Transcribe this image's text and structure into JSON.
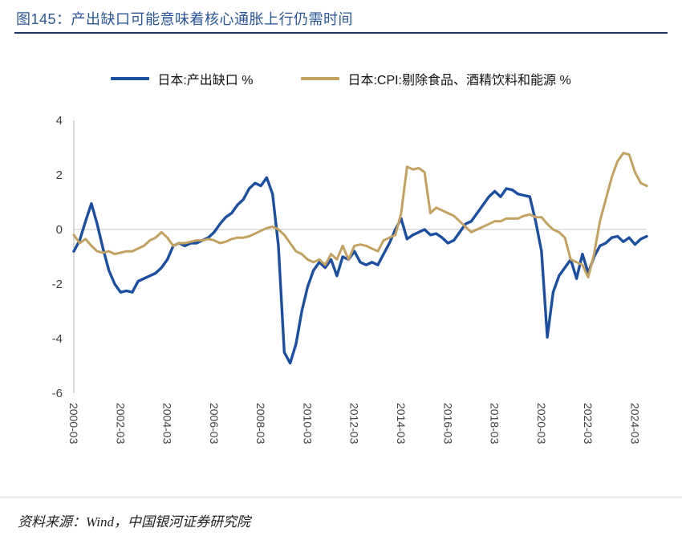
{
  "header": {
    "title": "图145：产出缺口可能意味着核心通胀上行仍需时间"
  },
  "legend": [
    {
      "label": "日本:产出缺口 %",
      "color": "#1C4FA1"
    },
    {
      "label": "日本:CPI:剔除食品、酒精饮料和能源 %",
      "color": "#C3A161"
    }
  ],
  "footer": {
    "source": "资料来源：Wind，中国银河证券研究院"
  },
  "colors": {
    "title": "#2B579A",
    "title_rule": "#1F3864",
    "axis": "#BFBFBF",
    "zero_line": "#D0D0D0",
    "tick_text": "#404040"
  },
  "chart_data": {
    "type": "line",
    "title": "",
    "xlabel": "",
    "ylabel": "",
    "x_frequency": "quarterly",
    "x_range": [
      "2000-03",
      "2024-09"
    ],
    "x_tick_labels": [
      "2000-03",
      "2002-03",
      "2004-03",
      "2006-03",
      "2008-03",
      "2010-03",
      "2012-03",
      "2014-03",
      "2016-03",
      "2018-03",
      "2020-03",
      "2022-03",
      "2024-03"
    ],
    "x_tick_step_points": 8,
    "y_ticks": [
      4,
      2,
      0,
      -2,
      -4,
      -6
    ],
    "ylim": [
      -6,
      4
    ],
    "grid": "zero-line-only",
    "legend_position": "top",
    "series": [
      {
        "name": "日本:产出缺口 %",
        "color": "#1C4FA1",
        "values": [
          -0.8,
          -0.4,
          0.3,
          0.95,
          0.2,
          -0.7,
          -1.5,
          -2.0,
          -2.3,
          -2.25,
          -2.3,
          -1.9,
          -1.8,
          -1.7,
          -1.6,
          -1.4,
          -1.1,
          -0.6,
          -0.5,
          -0.6,
          -0.5,
          -0.5,
          -0.4,
          -0.3,
          -0.1,
          0.2,
          0.45,
          0.6,
          0.9,
          1.1,
          1.5,
          1.7,
          1.6,
          1.9,
          1.3,
          -0.6,
          -4.5,
          -4.9,
          -4.2,
          -3.0,
          -2.1,
          -1.5,
          -1.2,
          -1.4,
          -1.1,
          -1.7,
          -1.0,
          -1.1,
          -0.8,
          -1.2,
          -1.3,
          -1.2,
          -1.3,
          -0.9,
          -0.5,
          0.0,
          0.4,
          -0.35,
          -0.2,
          -0.1,
          0.0,
          -0.2,
          -0.15,
          -0.3,
          -0.5,
          -0.4,
          -0.1,
          0.2,
          0.3,
          0.6,
          0.9,
          1.2,
          1.4,
          1.2,
          1.5,
          1.45,
          1.3,
          1.25,
          1.2,
          0.3,
          -0.8,
          -3.95,
          -2.3,
          -1.7,
          -1.4,
          -1.1,
          -1.8,
          -0.9,
          -1.6,
          -1.0,
          -0.6,
          -0.5,
          -0.3,
          -0.25,
          -0.45,
          -0.3,
          -0.55,
          -0.35,
          -0.25
        ]
      },
      {
        "name": "日本:CPI:剔除食品、酒精饮料和能源 %",
        "color": "#C3A161",
        "values": [
          -0.2,
          -0.5,
          -0.35,
          -0.6,
          -0.8,
          -0.85,
          -0.8,
          -0.9,
          -0.85,
          -0.8,
          -0.8,
          -0.7,
          -0.6,
          -0.4,
          -0.3,
          -0.1,
          -0.3,
          -0.6,
          -0.5,
          -0.5,
          -0.45,
          -0.4,
          -0.4,
          -0.35,
          -0.4,
          -0.5,
          -0.45,
          -0.35,
          -0.3,
          -0.3,
          -0.25,
          -0.15,
          -0.05,
          0.05,
          0.1,
          0.0,
          -0.2,
          -0.5,
          -0.8,
          -0.9,
          -1.1,
          -1.2,
          -1.1,
          -1.3,
          -0.9,
          -1.1,
          -0.6,
          -1.1,
          -0.6,
          -0.55,
          -0.6,
          -0.7,
          -0.8,
          -0.4,
          -0.3,
          -0.2,
          0.6,
          2.3,
          2.2,
          2.25,
          2.1,
          0.6,
          0.8,
          0.7,
          0.6,
          0.5,
          0.3,
          0.1,
          -0.1,
          0.0,
          0.1,
          0.2,
          0.3,
          0.3,
          0.4,
          0.4,
          0.4,
          0.5,
          0.55,
          0.45,
          0.45,
          0.2,
          0.0,
          -0.1,
          -0.3,
          -1.1,
          -1.2,
          -1.3,
          -1.75,
          -0.9,
          0.3,
          1.1,
          1.9,
          2.5,
          2.8,
          2.75,
          2.1,
          1.7,
          1.6
        ]
      }
    ]
  }
}
